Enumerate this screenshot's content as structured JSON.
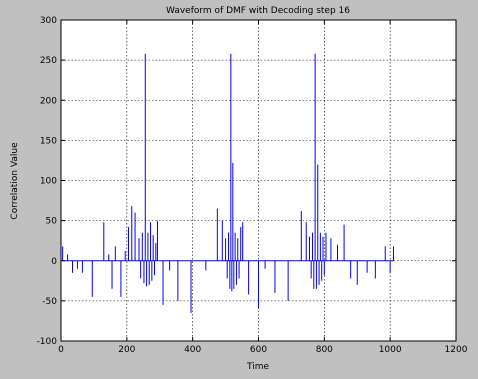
{
  "chart_data": {
    "type": "line",
    "title": "Waveform of DMF with Decoding step 16",
    "xlabel": "Time",
    "ylabel": "Correlation Value",
    "xlim": [
      0,
      1200
    ],
    "ylim": [
      -100,
      300
    ],
    "xticks": [
      0,
      200,
      400,
      600,
      800,
      1000,
      1200
    ],
    "yticks": [
      -100,
      -50,
      0,
      50,
      100,
      150,
      200,
      250,
      300
    ],
    "grid": true,
    "line_color": "#0000ff",
    "background_color": "#ffffff",
    "figure_color": "#c0c0c0",
    "series": [
      {
        "spikes": [
          [
            5,
            18
          ],
          [
            20,
            8
          ],
          [
            35,
            -15
          ],
          [
            50,
            -10
          ],
          [
            65,
            -15
          ],
          [
            95,
            -45
          ],
          [
            130,
            48
          ],
          [
            145,
            8
          ],
          [
            155,
            -35
          ],
          [
            165,
            18
          ],
          [
            182,
            -45
          ],
          [
            195,
            12
          ],
          [
            205,
            42
          ],
          [
            215,
            68
          ],
          [
            225,
            60
          ],
          [
            237,
            28
          ],
          [
            242,
            -22
          ],
          [
            247,
            35
          ],
          [
            252,
            -28
          ],
          [
            256,
            258
          ],
          [
            260,
            -32
          ],
          [
            264,
            35
          ],
          [
            268,
            -30
          ],
          [
            272,
            48
          ],
          [
            276,
            -25
          ],
          [
            280,
            32
          ],
          [
            284,
            -18
          ],
          [
            288,
            22
          ],
          [
            293,
            50
          ],
          [
            310,
            -55
          ],
          [
            330,
            -12
          ],
          [
            355,
            -50
          ],
          [
            395,
            -65
          ],
          [
            440,
            -12
          ],
          [
            475,
            65
          ],
          [
            490,
            50
          ],
          [
            500,
            28
          ],
          [
            505,
            -22
          ],
          [
            509,
            35
          ],
          [
            513,
            -35
          ],
          [
            516,
            258
          ],
          [
            519,
            -38
          ],
          [
            522,
            122
          ],
          [
            525,
            -35
          ],
          [
            529,
            35
          ],
          [
            533,
            -30
          ],
          [
            537,
            28
          ],
          [
            541,
            -22
          ],
          [
            546,
            42
          ],
          [
            552,
            48
          ],
          [
            570,
            -42
          ],
          [
            600,
            -60
          ],
          [
            620,
            -10
          ],
          [
            650,
            -40
          ],
          [
            690,
            -50
          ],
          [
            730,
            62
          ],
          [
            745,
            48
          ],
          [
            755,
            30
          ],
          [
            760,
            -22
          ],
          [
            764,
            35
          ],
          [
            768,
            -35
          ],
          [
            772,
            258
          ],
          [
            776,
            -35
          ],
          [
            780,
            120
          ],
          [
            784,
            -30
          ],
          [
            788,
            35
          ],
          [
            792,
            -25
          ],
          [
            796,
            30
          ],
          [
            800,
            -18
          ],
          [
            805,
            35
          ],
          [
            820,
            28
          ],
          [
            840,
            20
          ],
          [
            860,
            45
          ],
          [
            880,
            -22
          ],
          [
            900,
            -30
          ],
          [
            930,
            -15
          ],
          [
            955,
            -22
          ],
          [
            985,
            18
          ],
          [
            1000,
            -15
          ],
          [
            1010,
            18
          ]
        ]
      }
    ]
  }
}
